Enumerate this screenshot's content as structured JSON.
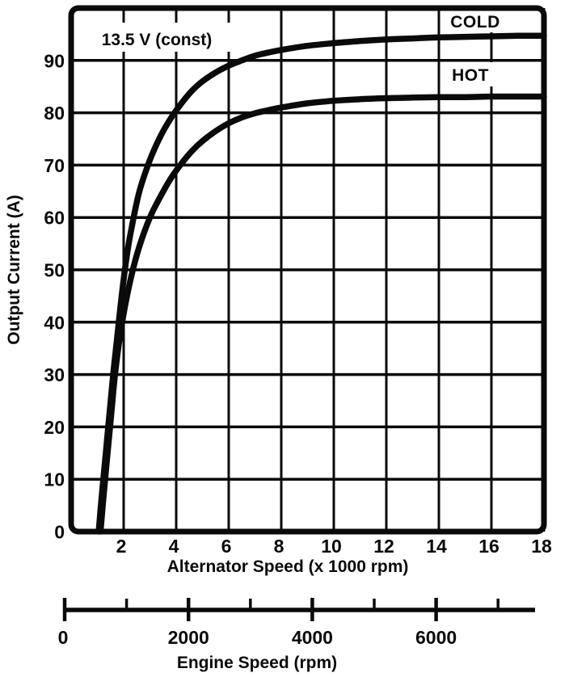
{
  "figure": {
    "kind": "alternator-output-characteristic-curves"
  },
  "chart_data": {
    "type": "line",
    "title": "",
    "annotation": "13.5 V (const)",
    "xlabel": "Alternator Speed (x 1000 rpm)",
    "ylabel": "Output Current (A)",
    "xlim": [
      0,
      18
    ],
    "ylim": [
      0,
      100
    ],
    "x_ticks": [
      2,
      4,
      6,
      8,
      10,
      12,
      14,
      16,
      18
    ],
    "y_ticks": [
      0,
      10,
      20,
      30,
      40,
      50,
      60,
      70,
      80,
      90
    ],
    "grid": true,
    "line_color": "#0a0a0a",
    "series": [
      {
        "name": "COLD",
        "points": [
          [
            1.05,
            0
          ],
          [
            1.15,
            6
          ],
          [
            1.3,
            14
          ],
          [
            1.45,
            22
          ],
          [
            1.6,
            30
          ],
          [
            1.75,
            37
          ],
          [
            1.9,
            44
          ],
          [
            2.1,
            52
          ],
          [
            2.3,
            58
          ],
          [
            2.6,
            65
          ],
          [
            3.0,
            71
          ],
          [
            3.4,
            75.5
          ],
          [
            3.8,
            79
          ],
          [
            4.2,
            81.8
          ],
          [
            4.6,
            84.2
          ],
          [
            5.0,
            86
          ],
          [
            5.5,
            87.7
          ],
          [
            6.0,
            89
          ],
          [
            6.5,
            90
          ],
          [
            7.0,
            90.9
          ],
          [
            7.5,
            91.5
          ],
          [
            8.0,
            92
          ],
          [
            9.0,
            92.8
          ],
          [
            10,
            93.3
          ],
          [
            11,
            93.7
          ],
          [
            12,
            94
          ],
          [
            13,
            94.2
          ],
          [
            14,
            94.4
          ],
          [
            15,
            94.5
          ],
          [
            16,
            94.6
          ],
          [
            17,
            94.7
          ],
          [
            18,
            94.7
          ]
        ]
      },
      {
        "name": "HOT",
        "points": [
          [
            1.12,
            0
          ],
          [
            1.22,
            6
          ],
          [
            1.37,
            14
          ],
          [
            1.52,
            22
          ],
          [
            1.67,
            30
          ],
          [
            1.85,
            37
          ],
          [
            2.05,
            43
          ],
          [
            2.3,
            49
          ],
          [
            2.6,
            54.5
          ],
          [
            3.0,
            60
          ],
          [
            3.4,
            64
          ],
          [
            3.8,
            67.5
          ],
          [
            4.2,
            70.3
          ],
          [
            4.6,
            72.7
          ],
          [
            5.0,
            74.6
          ],
          [
            5.5,
            76.5
          ],
          [
            6.0,
            78
          ],
          [
            6.5,
            79.1
          ],
          [
            7.0,
            79.9
          ],
          [
            7.5,
            80.5
          ],
          [
            8.0,
            81
          ],
          [
            9.0,
            81.8
          ],
          [
            10,
            82.3
          ],
          [
            11,
            82.6
          ],
          [
            12,
            82.8
          ],
          [
            13,
            82.9
          ],
          [
            14,
            83
          ],
          [
            15,
            83
          ],
          [
            16,
            83.1
          ],
          [
            17,
            83.1
          ],
          [
            18,
            83.1
          ]
        ]
      }
    ],
    "secondary_x_axis": {
      "label": "Engine Speed (rpm)",
      "range": [
        0,
        7600
      ],
      "major_ticks": [
        0,
        2000,
        4000,
        6000
      ],
      "minor_ticks": [
        1000,
        3000,
        5000,
        7000
      ]
    }
  }
}
